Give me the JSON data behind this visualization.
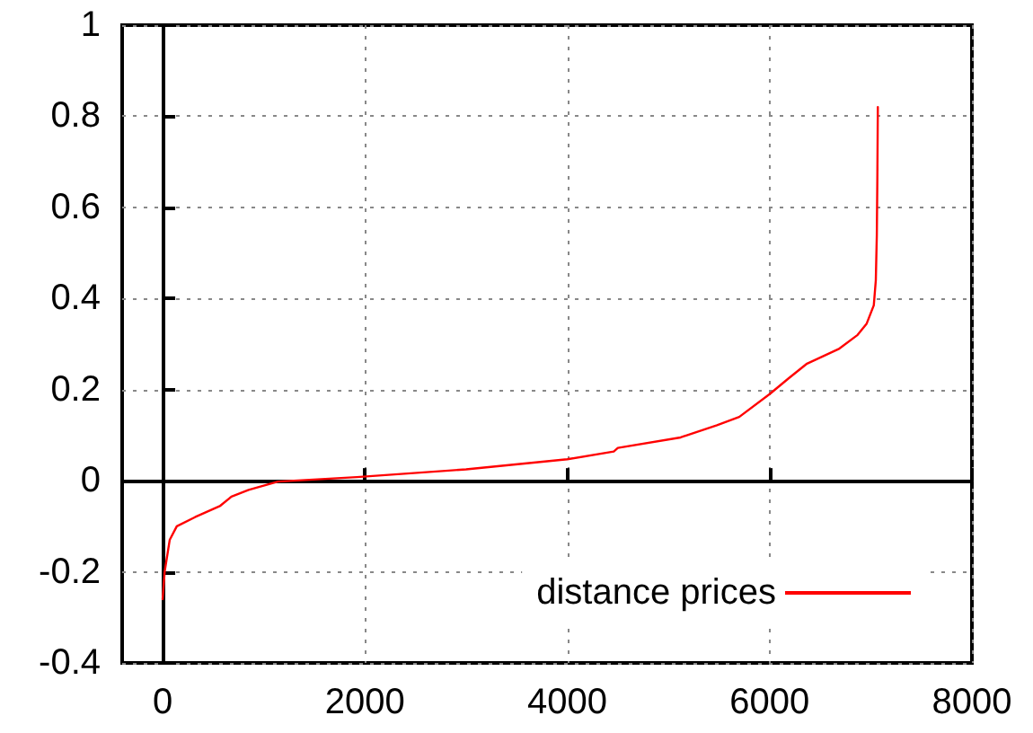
{
  "chart_data": {
    "type": "line",
    "series": [
      {
        "name": "distance prices",
        "color": "#ff0000",
        "x": [
          0,
          20,
          70,
          140,
          320,
          570,
          680,
          850,
          1140,
          1920,
          3000,
          4000,
          4460,
          4500,
          5120,
          5480,
          5700,
          6000,
          6190,
          6370,
          6690,
          6870,
          6960,
          7030,
          7050,
          7060,
          7065,
          7070
        ],
        "values": [
          -0.26,
          -0.2,
          -0.13,
          -0.1,
          -0.08,
          -0.055,
          -0.035,
          -0.02,
          -0.002,
          0.008,
          0.025,
          0.047,
          0.064,
          0.072,
          0.095,
          0.122,
          0.14,
          0.19,
          0.225,
          0.257,
          0.29,
          0.32,
          0.345,
          0.385,
          0.44,
          0.54,
          0.66,
          0.82
        ]
      }
    ],
    "xlim": [
      -400,
      8000
    ],
    "xticks": [
      0,
      2000,
      4000,
      6000,
      8000
    ],
    "ylim": [
      -0.4,
      1
    ],
    "yticks": [
      -0.4,
      -0.2,
      0,
      0.2,
      0.4,
      0.6,
      0.8,
      1
    ],
    "grid": true,
    "legend": "bottom right",
    "marker": "none",
    "line_style": "solid"
  }
}
